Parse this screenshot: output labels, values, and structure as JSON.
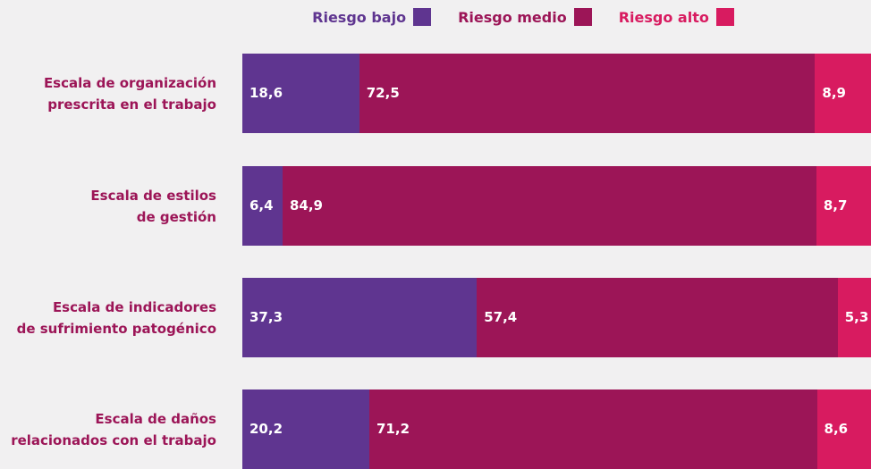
{
  "chart_data": {
    "type": "stacked-bar-horizontal",
    "categories": [
      "Escala de organización\nprescrita en el trabajo",
      "Escala de estilos\nde gestión",
      "Escala de indicadores\nde sufrimiento patogénico",
      "Escala de daños\nrelacionados con el trabajo"
    ],
    "series": [
      {
        "name": "Riesgo bajo",
        "color": "#5f3590",
        "values": [
          18.6,
          6.4,
          37.3,
          20.2
        ],
        "value_labels": [
          "18,6",
          "6,4",
          "37,3",
          "20,2"
        ]
      },
      {
        "name": "Riesgo medio",
        "color": "#9c1557",
        "values": [
          72.5,
          84.9,
          57.4,
          71.2
        ],
        "value_labels": [
          "72,5",
          "84,9",
          "57,4",
          "71,2"
        ]
      },
      {
        "name": "Riesgo alto",
        "color": "#d81b60",
        "values": [
          8.9,
          8.7,
          5.3,
          8.6
        ],
        "value_labels": [
          "8,9",
          "8,7",
          "5,3",
          "8,6"
        ]
      }
    ],
    "xlim": [
      0,
      100
    ],
    "legend": "top"
  }
}
